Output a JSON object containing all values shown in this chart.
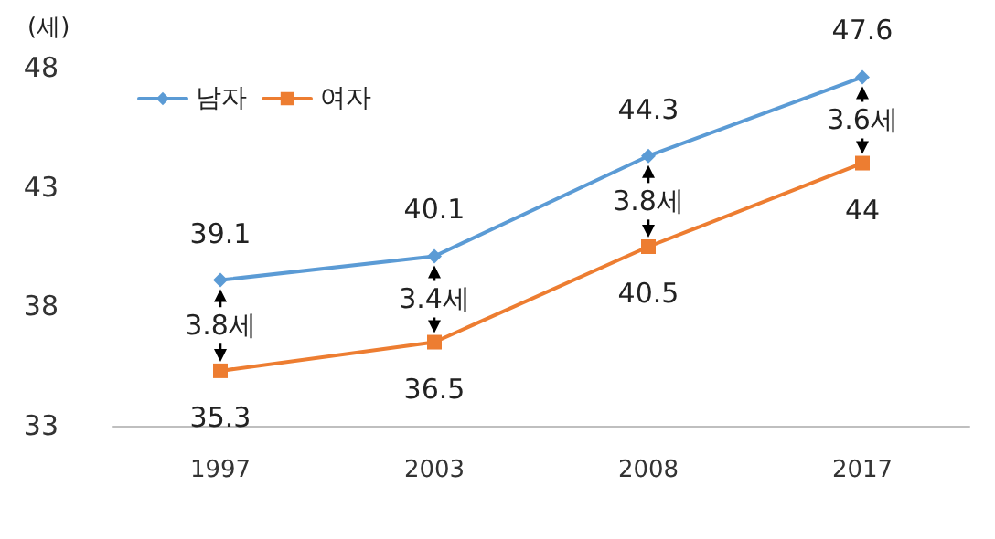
{
  "chart_data": {
    "type": "line",
    "ylabel": "(세)",
    "categories": [
      "1997",
      "2003",
      "2008",
      "2017"
    ],
    "series": [
      {
        "name": "남자",
        "color": "#5b9bd5",
        "marker": "diamond",
        "values": [
          39.1,
          40.1,
          44.3,
          47.6
        ]
      },
      {
        "name": "여자",
        "color": "#ed7d31",
        "marker": "square",
        "values": [
          35.3,
          36.5,
          40.5,
          44
        ]
      }
    ],
    "ylim": [
      33,
      48
    ],
    "yticks": [
      33,
      38,
      43,
      48
    ],
    "grid": false,
    "legend": "top left",
    "data_labels": true,
    "annotations": [
      "3.8세",
      "3.4세",
      "3.8세",
      "3.6세"
    ]
  }
}
